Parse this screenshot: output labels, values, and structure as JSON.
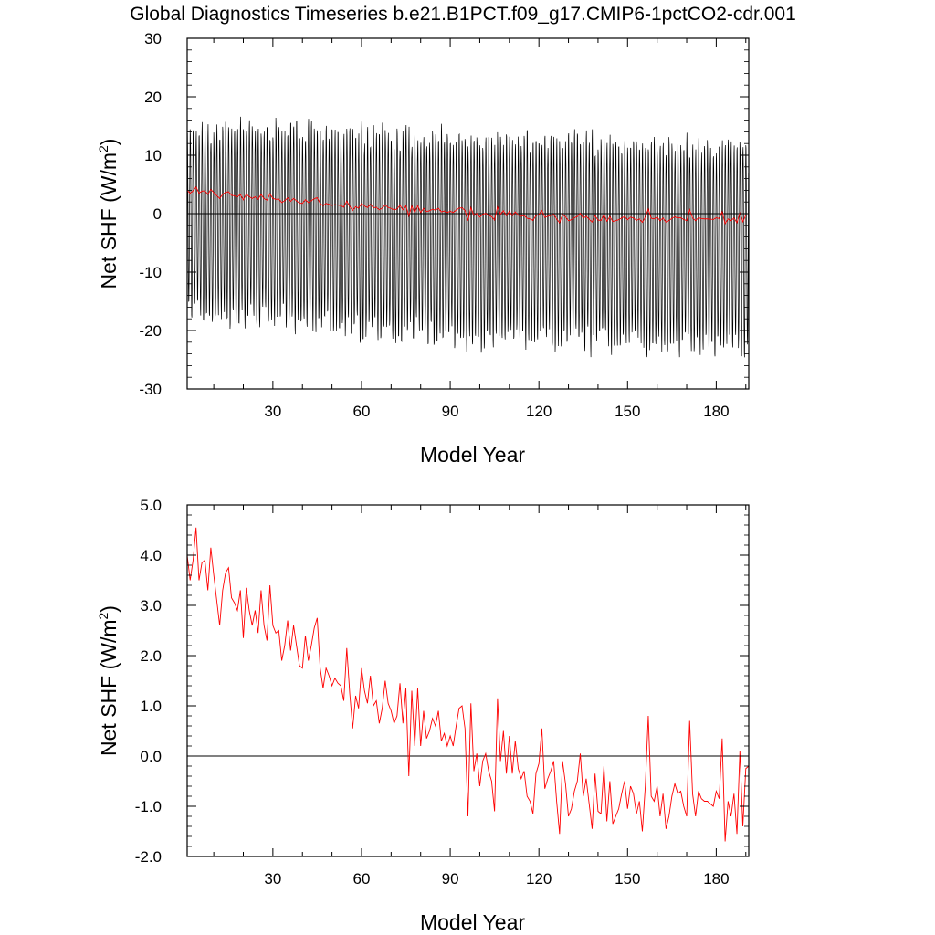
{
  "title": "Global Diagnostics Timeseries b.e21.B1PCT.f09_g17.CMIP6-1pctCO2-cdr.001",
  "colors": {
    "monthly": "#000000",
    "annual": "#ff0000",
    "zero_line": "#000000"
  },
  "chart_data": [
    {
      "type": "line",
      "title": "Global Diagnostics Timeseries b.e21.B1PCT.f09_g17.CMIP6-1pctCO2-cdr.001",
      "xlabel": "Model Year",
      "ylabel_main": "Net SHF (W/m",
      "ylabel_sup": "2",
      "ylabel_end": ")",
      "xlim": [
        1,
        191
      ],
      "ylim": [
        -30,
        30
      ],
      "x_ticks": [
        30,
        60,
        90,
        120,
        150,
        180
      ],
      "x_tick_labels": [
        "30",
        "60",
        "90",
        "120",
        "150",
        "180"
      ],
      "y_ticks": [
        -30,
        -20,
        -10,
        0,
        10,
        20,
        30
      ],
      "y_tick_labels": [
        "-30",
        "-20",
        "-10",
        "0",
        "10",
        "20",
        "30"
      ],
      "reference_line": 0,
      "monthly_envelope": {
        "description": "monthly values oscillate seasonally each year between the annual max and min",
        "years": [
          1,
          10,
          20,
          30,
          40,
          50,
          60,
          70,
          80,
          90,
          100,
          110,
          120,
          130,
          140,
          150,
          160,
          170,
          180,
          190
        ],
        "max": [
          16,
          16,
          16,
          16,
          16,
          15,
          15,
          15,
          15,
          15,
          14,
          14,
          14,
          14,
          14,
          13,
          13,
          13,
          13,
          13
        ],
        "min": [
          -17,
          -19,
          -19.5,
          -20,
          -20,
          -20.5,
          -21,
          -21.5,
          -22,
          -22.5,
          -23,
          -23,
          -23,
          -23.5,
          -23.5,
          -23.5,
          -24,
          -24,
          -24,
          -24
        ]
      },
      "series": [
        {
          "name": "",
          "color": "#ff0000",
          "ref": "annual_mean"
        }
      ]
    },
    {
      "type": "line",
      "xlabel": "Model Year",
      "ylabel_main": "Net SHF (W/m",
      "ylabel_sup": "2",
      "ylabel_end": ")",
      "xlim": [
        1,
        191
      ],
      "ylim": [
        -2.0,
        5.0
      ],
      "x_ticks": [
        30,
        60,
        90,
        120,
        150,
        180
      ],
      "x_tick_labels": [
        "30",
        "60",
        "90",
        "120",
        "150",
        "180"
      ],
      "y_ticks": [
        -2,
        -1,
        0,
        1,
        2,
        3,
        4,
        5
      ],
      "y_tick_labels": [
        "-2.0",
        "-1.0",
        "0.0",
        "1.0",
        "2.0",
        "3.0",
        "4.0",
        "5.0"
      ],
      "reference_line": 0,
      "series": [
        {
          "name": "",
          "color": "#ff0000",
          "x_start": 1,
          "x_step": 1,
          "values": [
            4.0,
            3.5,
            3.9,
            4.55,
            3.5,
            3.85,
            3.9,
            3.3,
            4.15,
            3.6,
            3.1,
            2.6,
            3.3,
            3.65,
            3.75,
            3.15,
            3.05,
            2.9,
            3.3,
            2.35,
            3.35,
            2.9,
            2.6,
            2.9,
            2.45,
            3.3,
            2.6,
            2.3,
            3.4,
            2.6,
            2.45,
            2.5,
            1.9,
            2.2,
            2.7,
            2.1,
            2.6,
            2.2,
            1.8,
            1.75,
            2.4,
            1.9,
            2.2,
            2.55,
            2.75,
            1.75,
            1.35,
            1.75,
            1.6,
            1.4,
            1.55,
            1.45,
            1.4,
            1.1,
            2.15,
            1.25,
            0.55,
            1.2,
            0.95,
            1.75,
            1.3,
            1.05,
            1.6,
            1.0,
            1.1,
            0.65,
            0.95,
            1.5,
            1.05,
            0.9,
            0.65,
            0.8,
            1.45,
            0.65,
            1.35,
            -0.4,
            1.3,
            0.2,
            1.35,
            0.2,
            0.9,
            0.35,
            0.5,
            0.75,
            0.6,
            0.9,
            0.3,
            0.45,
            0.2,
            0.4,
            0.2,
            0.6,
            0.95,
            1.0,
            0.55,
            -1.2,
            1.05,
            -0.3,
            0.05,
            -0.6,
            -0.1,
            0.05,
            -0.3,
            -0.5,
            -1.1,
            1.15,
            -0.1,
            0.5,
            -0.35,
            0.4,
            -0.35,
            0.3,
            -0.25,
            -0.45,
            -0.3,
            -0.8,
            -0.9,
            -1.15,
            -0.35,
            -0.15,
            0.55,
            -0.65,
            -0.45,
            -0.3,
            -0.1,
            -0.9,
            -1.55,
            -0.1,
            -0.55,
            -1.2,
            -1.05,
            -0.7,
            -0.5,
            0.05,
            -0.8,
            -0.45,
            -0.95,
            -1.45,
            -0.35,
            -1.1,
            -1.15,
            -0.2,
            -1.3,
            -0.5,
            -1.35,
            -1.2,
            -1.05,
            -0.75,
            -0.5,
            -1.05,
            -0.6,
            -0.75,
            -1.15,
            -0.9,
            -1.5,
            -0.6,
            0.8,
            -0.8,
            -0.9,
            -0.6,
            -1.2,
            -0.75,
            -1.45,
            -1.2,
            -0.8,
            -0.55,
            -0.75,
            -0.7,
            -1.0,
            -1.2,
            0.7,
            -0.75,
            -1.2,
            -0.7,
            -0.85,
            -0.9,
            -0.9,
            -0.95,
            -1.0,
            -0.7,
            -0.85,
            0.35,
            -1.7,
            -0.9,
            -1.2,
            -0.75,
            -1.55,
            0.1,
            -1.4,
            -0.25,
            -0.2
          ]
        }
      ]
    }
  ]
}
